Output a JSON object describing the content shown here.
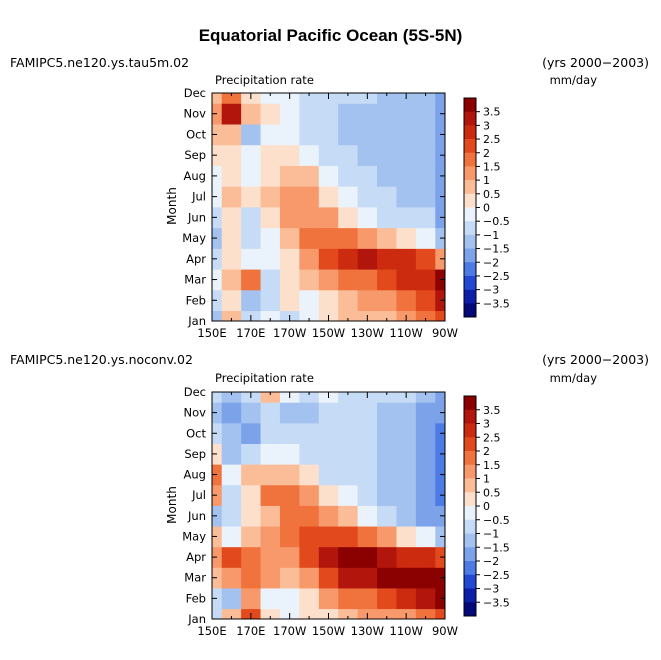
{
  "title": "Equatorial Pacific Ocean (5S-5N)",
  "colorbar_levels": [
    "3.5",
    "3",
    "2.5",
    "2",
    "1.5",
    "1",
    "0.5",
    "0",
    "-0.5",
    "-1",
    "-1.5",
    "-2",
    "-2.5",
    "-3",
    "-3.5"
  ],
  "colorbar_colors": [
    "#8b0000",
    "#b2150c",
    "#cd2b10",
    "#e24a1d",
    "#f0723c",
    "#f7996b",
    "#fbbd98",
    "#fde0cb",
    "#eaf2fb",
    "#c6dbf5",
    "#a4c2ef",
    "#7ca2ea",
    "#4c7be6",
    "#2349d4",
    "#0d1fa8",
    "#04097a"
  ],
  "panels": [
    {
      "left_label": "FAMIPC5.ne120.ys.tau5m.02",
      "right_label": "(yrs 2000−2003)",
      "inner_left": "Precipitation rate",
      "inner_right": "mm/day",
      "ylabel": "Month"
    },
    {
      "left_label": "FAMIPC5.ne120.ys.noconv.02",
      "right_label": "(yrs 2000−2003)",
      "inner_left": "Precipitation rate",
      "inner_right": "mm/day",
      "ylabel": "Month"
    }
  ],
  "chart_data": [
    {
      "type": "heatmap",
      "title": "Precipitation rate",
      "units": "mm/day",
      "xlabel": "",
      "ylabel": "Month",
      "x_ticks": [
        "150E",
        "170E",
        "170W",
        "150W",
        "130W",
        "110W",
        "90W"
      ],
      "x": [
        "150E",
        "160E",
        "170E",
        "180",
        "170W",
        "160W",
        "150W",
        "140W",
        "130W",
        "120W",
        "110W",
        "100W",
        "90W"
      ],
      "y_ticks": [
        "Jan",
        "Feb",
        "Mar",
        "Apr",
        "May",
        "Jun",
        "Jul",
        "Aug",
        "Sep",
        "Oct",
        "Nov",
        "Dec"
      ],
      "values": [
        [
          -1.5,
          0.5,
          -1,
          -0.5,
          -1,
          -0.5,
          0,
          0.5,
          0.5,
          0.5,
          1,
          1.5,
          2
        ],
        [
          -1,
          0,
          -1.5,
          -1,
          0,
          -0.5,
          0,
          0.5,
          1,
          1,
          1.5,
          2,
          3
        ],
        [
          -0.5,
          0.5,
          1.5,
          -1,
          0,
          0.5,
          1,
          1.5,
          1.5,
          2,
          2.5,
          2.5,
          3.5
        ],
        [
          -1,
          0,
          -0.5,
          -0.5,
          0,
          1,
          2,
          2.5,
          3,
          2.5,
          2.5,
          2,
          1
        ],
        [
          -1.5,
          0,
          -1,
          -0.5,
          0.5,
          1.5,
          1.5,
          1.5,
          1,
          0.5,
          0,
          -0.5,
          -1.5
        ],
        [
          -1,
          0,
          -1,
          0,
          1,
          1,
          1,
          0,
          -0.5,
          -1,
          -1,
          -1,
          -2
        ],
        [
          -0.5,
          0.5,
          0,
          0.5,
          1,
          1,
          0,
          -0.5,
          -1,
          -1,
          -1.5,
          -1.5,
          -2
        ],
        [
          -0.5,
          0,
          -0.5,
          0,
          0.5,
          0.5,
          -0.5,
          -1,
          -1,
          -1.5,
          -1.5,
          -1.5,
          -2
        ],
        [
          0,
          0,
          -0.5,
          0,
          0,
          -0.5,
          -1,
          -1,
          -1.5,
          -1.5,
          -1.5,
          -1.5,
          -2
        ],
        [
          0.5,
          0.5,
          -1.5,
          -0.5,
          -0.5,
          -1,
          -1,
          -1.5,
          -1.5,
          -1.5,
          -1.5,
          -1.5,
          -2
        ],
        [
          1,
          3,
          0.5,
          0,
          -0.5,
          -1,
          -1,
          -1.5,
          -1.5,
          -1.5,
          -1.5,
          -1.5,
          -2
        ],
        [
          0.5,
          1.5,
          0,
          -0.5,
          -0.5,
          -1,
          -1,
          -1,
          -1,
          -1.5,
          -1.5,
          -1.5,
          -2
        ]
      ]
    },
    {
      "type": "heatmap",
      "title": "Precipitation rate",
      "units": "mm/day",
      "xlabel": "",
      "ylabel": "Month",
      "x_ticks": [
        "150E",
        "170E",
        "170W",
        "150W",
        "130W",
        "110W",
        "90W"
      ],
      "x": [
        "150E",
        "160E",
        "170E",
        "180",
        "170W",
        "160W",
        "150W",
        "140W",
        "130W",
        "120W",
        "110W",
        "100W",
        "90W"
      ],
      "y_ticks": [
        "Jan",
        "Feb",
        "Mar",
        "Apr",
        "May",
        "Jun",
        "Jul",
        "Aug",
        "Sep",
        "Oct",
        "Nov",
        "Dec"
      ],
      "values": [
        [
          -1,
          0.5,
          2,
          0,
          -0.5,
          0,
          0,
          0.5,
          1,
          1,
          1,
          1.5,
          2
        ],
        [
          -1,
          -1.5,
          1,
          -0.5,
          -0.5,
          0,
          1,
          1.5,
          1.5,
          2,
          2.5,
          3,
          3.5
        ],
        [
          0.5,
          1,
          1.5,
          1,
          0.5,
          1,
          2,
          3,
          3,
          3.5,
          3.5,
          3.5,
          4
        ],
        [
          1,
          2,
          1.5,
          1,
          1,
          2,
          3,
          3.5,
          3.5,
          3,
          2.5,
          2.5,
          2
        ],
        [
          0.5,
          -0.5,
          0.5,
          1,
          1.5,
          2,
          2,
          2,
          1.5,
          1,
          0,
          -0.5,
          -1.5
        ],
        [
          -1.5,
          -1,
          0,
          0.5,
          1.5,
          1.5,
          1,
          0.5,
          -0.5,
          -1,
          -1.5,
          -2,
          -2
        ],
        [
          1,
          -1,
          0,
          1.5,
          1.5,
          1,
          0,
          -0.5,
          -1,
          -1.5,
          -1.5,
          -2,
          -2.5
        ],
        [
          1.5,
          -0.5,
          0.5,
          0.5,
          0.5,
          0,
          -1,
          -1,
          -1,
          -1.5,
          -1.5,
          -2,
          -2.5
        ],
        [
          0,
          -1.5,
          -1,
          -0.5,
          -0.5,
          -1,
          -1,
          -1,
          -1,
          -1.5,
          -1.5,
          -2,
          -2.5
        ],
        [
          -1,
          -1.5,
          -2,
          -1,
          -1,
          -1,
          -1,
          -1,
          -1,
          -1.5,
          -1.5,
          -2,
          -2.5
        ],
        [
          -1.5,
          -2,
          -1.5,
          -1,
          -1.5,
          -1.5,
          -1,
          -1,
          -1,
          -1.5,
          -1.5,
          -2,
          -2
        ],
        [
          -1,
          -1.5,
          -1,
          0.5,
          -0.5,
          -1,
          -0.5,
          -1,
          -1,
          -1,
          -1,
          -1.5,
          -2
        ]
      ]
    }
  ]
}
